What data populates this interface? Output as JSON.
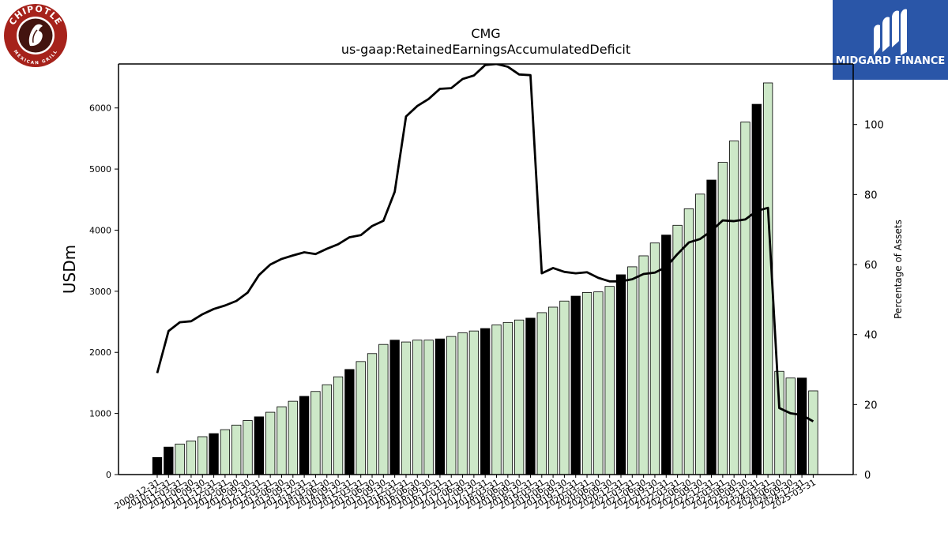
{
  "logos": {
    "left": {
      "brand_top": "CHIPOTLE",
      "brand_bottom": "MEXICAN GRILL",
      "color": "#a6221b"
    },
    "right": {
      "name": "MIDGARD FINANCE",
      "color": "#2a56a8"
    }
  },
  "colors": {
    "bar_annual": "#000000",
    "bar_quarter": "#cde8c8",
    "bar_edge": "#000000",
    "line": "#000000"
  },
  "chart_data": {
    "type": "bar",
    "title": "CMG",
    "subtitle": "us-gaap:RetainedEarningsAccumulatedDeficit",
    "ylabel": "USDm",
    "y2label": "Percentage of Assets",
    "ylim": [
      0,
      6720
    ],
    "y2lim": [
      0,
      117.3
    ],
    "yticks": [
      0,
      1000,
      2000,
      3000,
      4000,
      5000,
      6000
    ],
    "y2ticks": [
      0,
      20,
      40,
      60,
      80,
      100
    ],
    "categories": [
      "2009-12-31",
      "2010-12-31",
      "2011-03-31",
      "2011-06-30",
      "2011-09-30",
      "2011-12-31",
      "2012-03-31",
      "2012-06-30",
      "2012-09-30",
      "2012-12-31",
      "2013-03-31",
      "2013-06-30",
      "2013-09-30",
      "2013-12-31",
      "2014-03-31",
      "2014-06-30",
      "2014-09-30",
      "2014-12-31",
      "2015-03-31",
      "2015-06-30",
      "2015-09-30",
      "2015-12-31",
      "2016-03-31",
      "2016-06-30",
      "2016-09-30",
      "2016-12-31",
      "2017-03-31",
      "2017-06-30",
      "2017-09-30",
      "2017-12-31",
      "2018-03-31",
      "2018-06-30",
      "2018-09-30",
      "2018-12-31",
      "2019-03-31",
      "2019-06-30",
      "2019-09-30",
      "2019-12-31",
      "2020-03-31",
      "2020-06-30",
      "2020-09-30",
      "2020-12-31",
      "2021-03-31",
      "2021-06-30",
      "2021-09-30",
      "2021-12-31",
      "2022-03-31",
      "2022-06-30",
      "2022-09-30",
      "2022-12-31",
      "2023-03-31",
      "2023-06-30",
      "2023-09-30",
      "2023-12-31",
      "2024-03-31",
      "2024-06-30",
      "2024-09-30",
      "2024-12-31",
      "2025-03-31"
    ],
    "annual_flags": [
      true,
      true,
      false,
      false,
      false,
      true,
      false,
      false,
      false,
      true,
      false,
      false,
      false,
      true,
      false,
      false,
      false,
      true,
      false,
      false,
      false,
      true,
      false,
      false,
      false,
      true,
      false,
      false,
      false,
      true,
      false,
      false,
      false,
      true,
      false,
      false,
      false,
      true,
      false,
      false,
      false,
      true,
      false,
      false,
      false,
      true,
      false,
      false,
      false,
      true,
      false,
      false,
      false,
      true,
      false,
      false,
      false,
      true,
      false
    ],
    "series": [
      {
        "axis": "left",
        "kind": "bar",
        "values": [
          280,
          450,
          500,
          550,
          620,
          670,
          735,
          810,
          885,
          945,
          1020,
          1110,
          1200,
          1280,
          1360,
          1470,
          1600,
          1720,
          1850,
          1980,
          2130,
          2200,
          2170,
          2200,
          2200,
          2220,
          2260,
          2320,
          2350,
          2390,
          2450,
          2490,
          2530,
          2560,
          2650,
          2740,
          2840,
          2920,
          2980,
          2990,
          3080,
          3270,
          3400,
          3580,
          3790,
          3920,
          4080,
          4350,
          4590,
          4820,
          5110,
          5460,
          5770,
          6060,
          6410,
          1690,
          1580,
          1580,
          1370
        ]
      },
      {
        "axis": "right",
        "kind": "line",
        "values": [
          29.0,
          41.0,
          43.5,
          43.8,
          45.8,
          47.3,
          48.3,
          49.6,
          52.0,
          57.0,
          60.0,
          61.6,
          62.6,
          63.5,
          63.0,
          64.5,
          65.8,
          67.8,
          68.4,
          71.0,
          72.5,
          80.8,
          102.3,
          105.3,
          107.3,
          110.2,
          110.4,
          113.0,
          114.0,
          117.0,
          117.3,
          116.5,
          114.3,
          114.1,
          57.5,
          59.0,
          57.9,
          57.5,
          57.8,
          56.2,
          55.2,
          55.2,
          55.8,
          57.3,
          57.7,
          59.3,
          63.0,
          66.3,
          67.3,
          69.6,
          72.6,
          72.4,
          72.9,
          75.3,
          76.2,
          19.0,
          17.5,
          17.0,
          15.2
        ]
      }
    ]
  }
}
